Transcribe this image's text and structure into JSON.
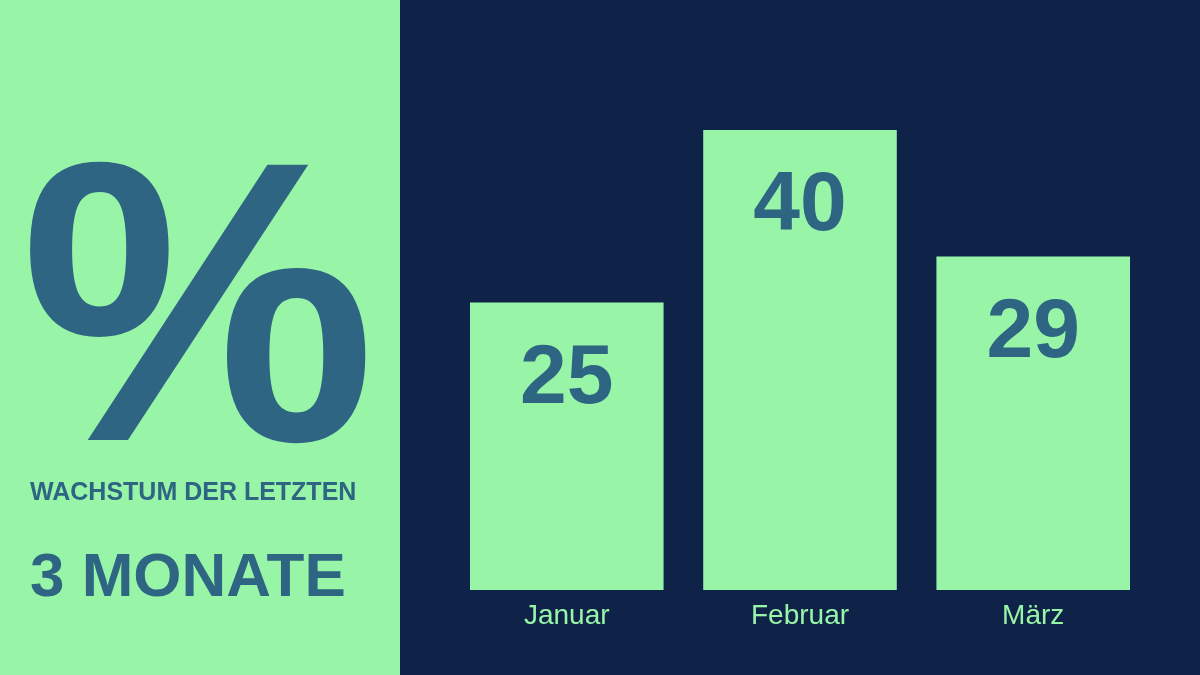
{
  "chart_data": {
    "type": "bar",
    "title": "WACHSTUM DER LETZTEN",
    "subtitle": "3 MONATE",
    "ylabel": "%",
    "categories": [
      "Januar",
      "Februar",
      "März"
    ],
    "values": [
      25,
      40,
      29
    ],
    "color": "#98f5a8",
    "data_labels": true
  }
}
